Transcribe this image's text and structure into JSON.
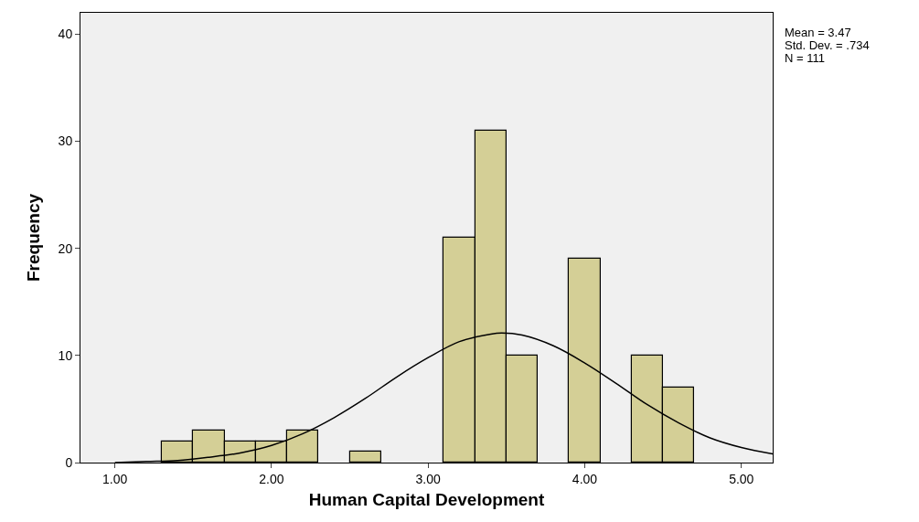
{
  "chart_data": {
    "type": "histogram",
    "xlabel": "Human Capital Development",
    "ylabel": "Frequency",
    "bins": [
      1.3,
      1.5,
      1.7,
      1.9,
      2.1,
      2.3,
      2.5,
      2.7,
      2.9,
      3.1,
      3.3,
      3.5,
      3.7,
      3.9,
      4.1,
      4.3,
      4.5,
      4.7
    ],
    "values": [
      2,
      3,
      2,
      2,
      3,
      0,
      1,
      0,
      0,
      21,
      31,
      10,
      0,
      19,
      0,
      10,
      7
    ],
    "color": "#d4cf96",
    "series": [
      {
        "type": "line",
        "color": "#000000",
        "x": [
          1.0,
          1.2,
          1.4,
          1.6,
          1.8,
          2.0,
          2.2,
          2.4,
          2.6,
          2.8,
          3.0,
          3.2,
          3.4,
          3.47,
          3.6,
          3.8,
          4.0,
          4.2,
          4.4,
          4.6,
          4.8,
          5.0,
          5.2
        ],
        "values": [
          0,
          0.1,
          0.2,
          0.5,
          0.9,
          1.6,
          2.7,
          4.2,
          6,
          8,
          9.8,
          11.3,
          12,
          12.1,
          11.9,
          10.9,
          9.3,
          7.4,
          5.4,
          3.7,
          2.3,
          1.4,
          0.8
        ]
      }
    ],
    "xlim": [
      0.78,
      5.2
    ],
    "xticks": [
      {
        "value": 1,
        "label": "1.00"
      },
      {
        "value": 2,
        "label": "2.00"
      },
      {
        "value": 3,
        "label": "3.00"
      },
      {
        "value": 4,
        "label": "4.00"
      },
      {
        "value": 5,
        "label": "5.00"
      }
    ],
    "ylim": [
      0,
      42
    ],
    "yticks": [
      0,
      10,
      20,
      30,
      40
    ],
    "annotations": [
      "Mean = 3.47",
      "Std. Dev. = .734",
      "N = 111"
    ]
  }
}
